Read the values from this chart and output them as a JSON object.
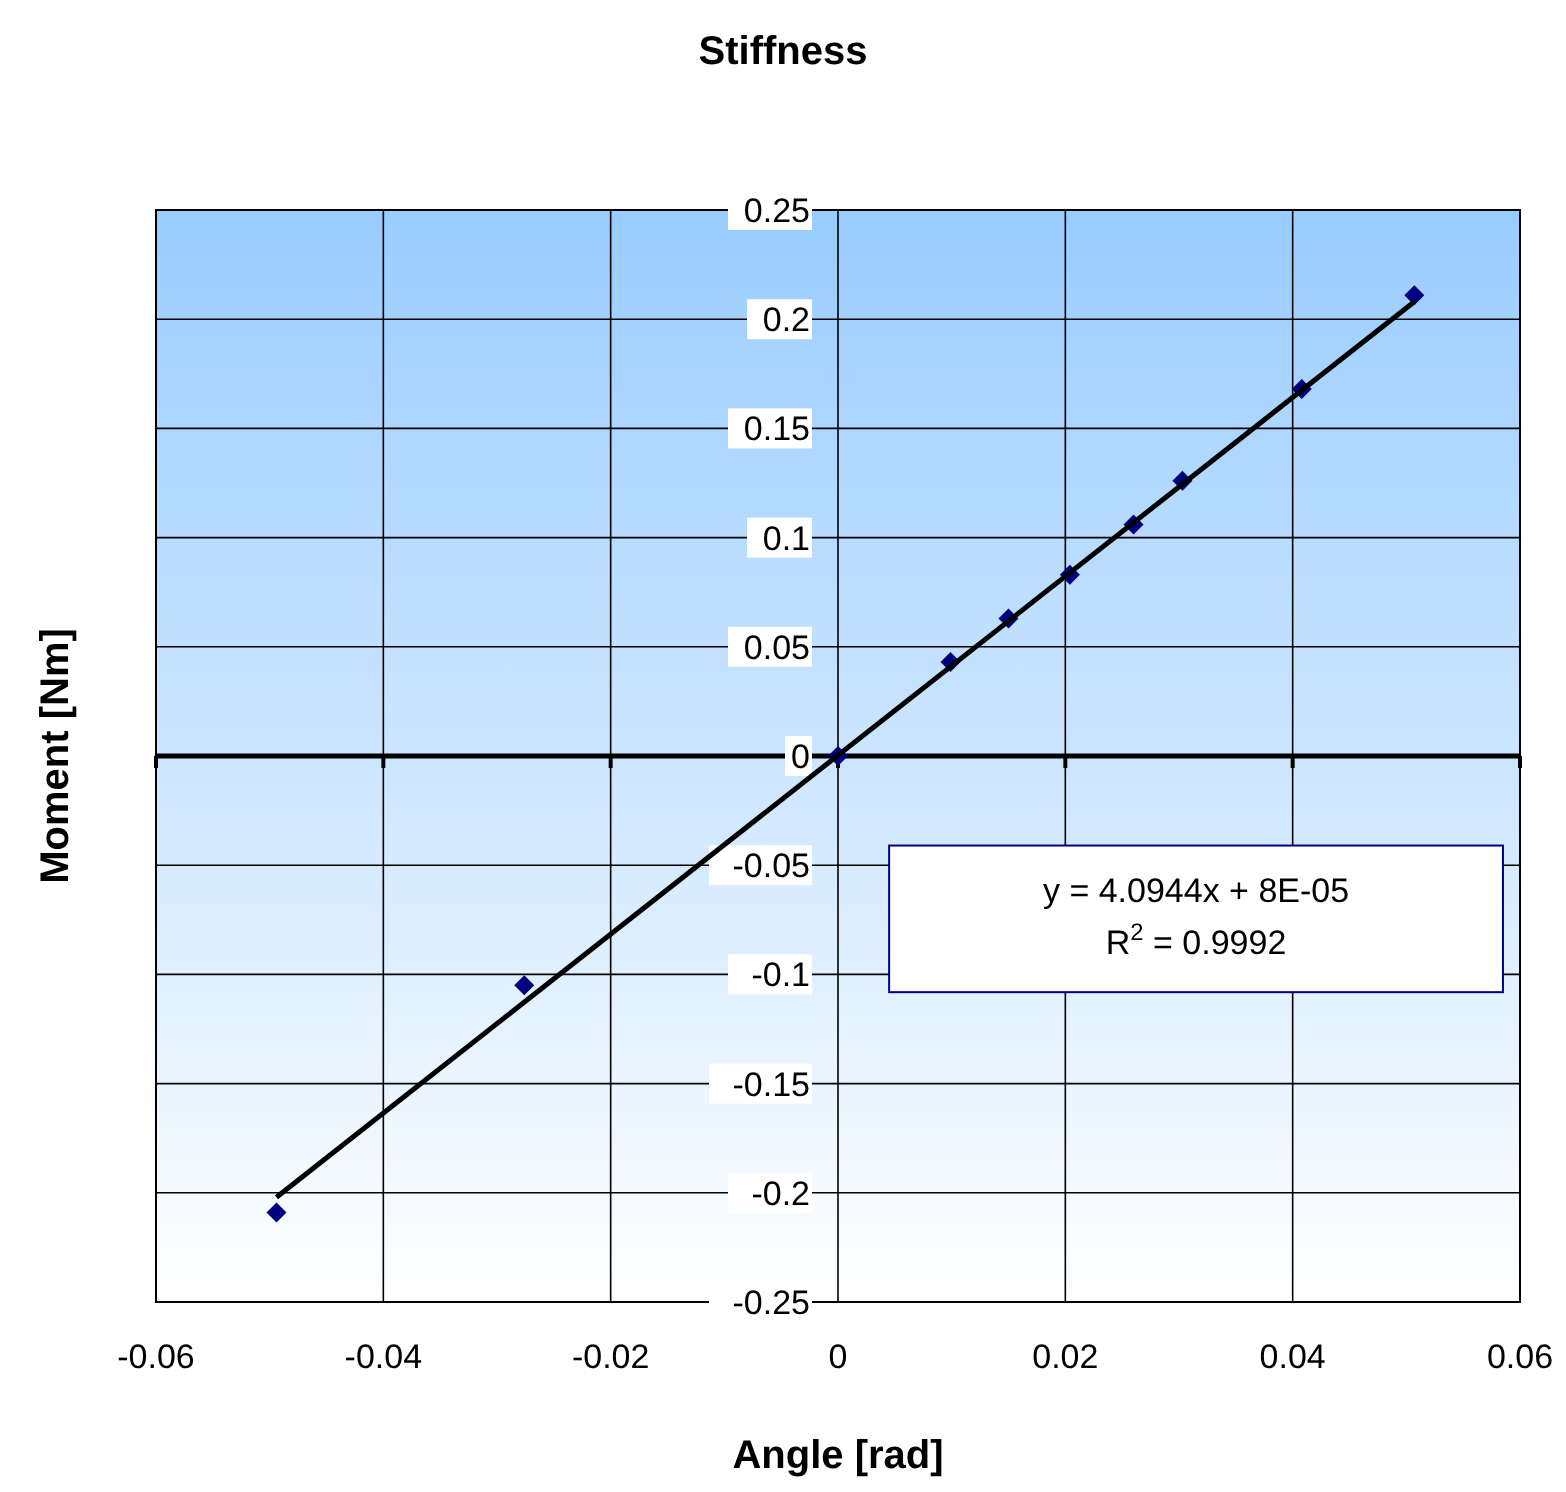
{
  "chart_data": {
    "type": "scatter",
    "title": "Stiffness",
    "xlabel": "Angle [rad]",
    "ylabel": "Moment [Nm]",
    "xlim": [
      -0.06,
      0.06
    ],
    "xticks": [
      -0.06,
      -0.04,
      -0.02,
      0,
      0.02,
      0.04,
      0.06
    ],
    "ylim": [
      -0.25,
      0.25
    ],
    "yticks": [
      -0.25,
      -0.2,
      -0.15,
      -0.1,
      -0.05,
      0,
      0.05,
      0.1,
      0.15,
      0.2,
      0.25
    ],
    "grid": true,
    "series": [
      {
        "color": "#000080",
        "marker": "diamond",
        "x": [
          -0.0494,
          -0.0276,
          0,
          0.0099,
          0.015,
          0.0204,
          0.026,
          0.0303,
          0.0408,
          0.0507
        ],
        "values": [
          -0.209,
          -0.105,
          0,
          0.043,
          0.063,
          0.083,
          0.106,
          0.126,
          0.168,
          0.211
        ]
      },
      {
        "type": "line",
        "color": "#000000",
        "marker": "none",
        "x": [
          -0.0494,
          0.0507
        ],
        "values": [
          -0.202,
          0.208
        ]
      }
    ],
    "annotations": [
      "y = 4.0944x + 8E-05",
      "R$^{2}$ = 0.9992"
    ]
  }
}
